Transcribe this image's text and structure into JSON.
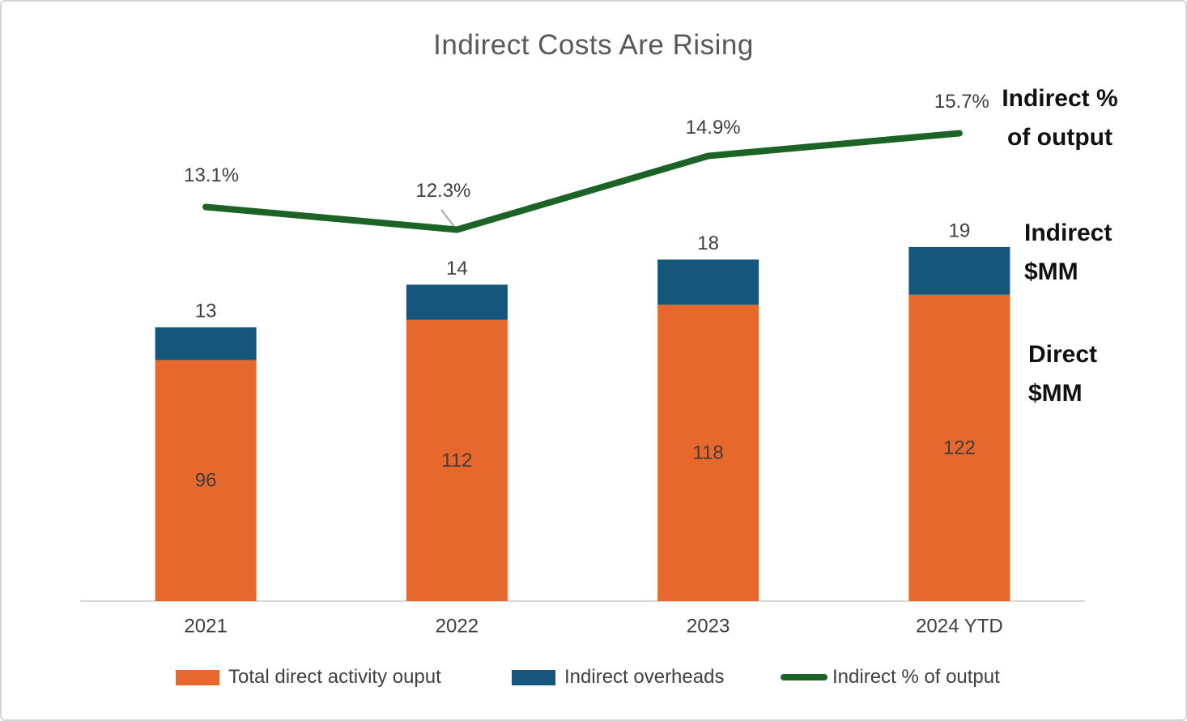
{
  "title": "Indirect Costs Are Rising",
  "annotations": {
    "indirect_pct": {
      "line1": "Indirect %",
      "line2": "of output"
    },
    "indirect_mm": {
      "line1": "Indirect",
      "line2": "$MM"
    },
    "direct_mm": {
      "line1": "Direct",
      "line2": "$MM"
    }
  },
  "legend": [
    {
      "label": "Total direct activity ouput",
      "swatch": "bar",
      "color": "#E6682D"
    },
    {
      "label": "Indirect overheads",
      "swatch": "bar",
      "color": "#17567C"
    },
    {
      "label": "Indirect % of output",
      "swatch": "line",
      "color": "#1B6426"
    }
  ],
  "colors": {
    "direct_bar": "#E6682D",
    "indirect_bar": "#17567C",
    "line": "#1B6426",
    "title_text": "#595959",
    "label_text": "#404040",
    "axis_line": "#D9D9D9",
    "leader_line": "#A6A6A6"
  },
  "chart_data": {
    "type": "bar",
    "subtype": "stacked-bar-with-line",
    "title": "Indirect Costs Are Rising",
    "categories": [
      "2021",
      "2022",
      "2023",
      "2024 YTD"
    ],
    "series": [
      {
        "name": "Total direct activity ouput",
        "type": "bar",
        "stack": "total",
        "color": "#E6682D",
        "values": [
          96,
          112,
          118,
          122
        ]
      },
      {
        "name": "Indirect overheads",
        "type": "bar",
        "stack": "total",
        "color": "#17567C",
        "values": [
          13,
          14,
          18,
          19
        ]
      },
      {
        "name": "Indirect % of output",
        "type": "line",
        "axis": "secondary",
        "color": "#1B6426",
        "values": [
          13.1,
          12.3,
          14.9,
          15.7
        ],
        "point_labels": [
          "13.1%",
          "12.3%",
          "14.9%",
          "15.7%"
        ]
      }
    ],
    "bar_total_labels": [
      13,
      14,
      18,
      19
    ],
    "xlabel": "",
    "ylabel_left": "Direct $MM / Indirect $MM",
    "ylabel_right": "Indirect % of output",
    "grid": false,
    "legend_position": "bottom",
    "axis_labels_visible": false
  }
}
